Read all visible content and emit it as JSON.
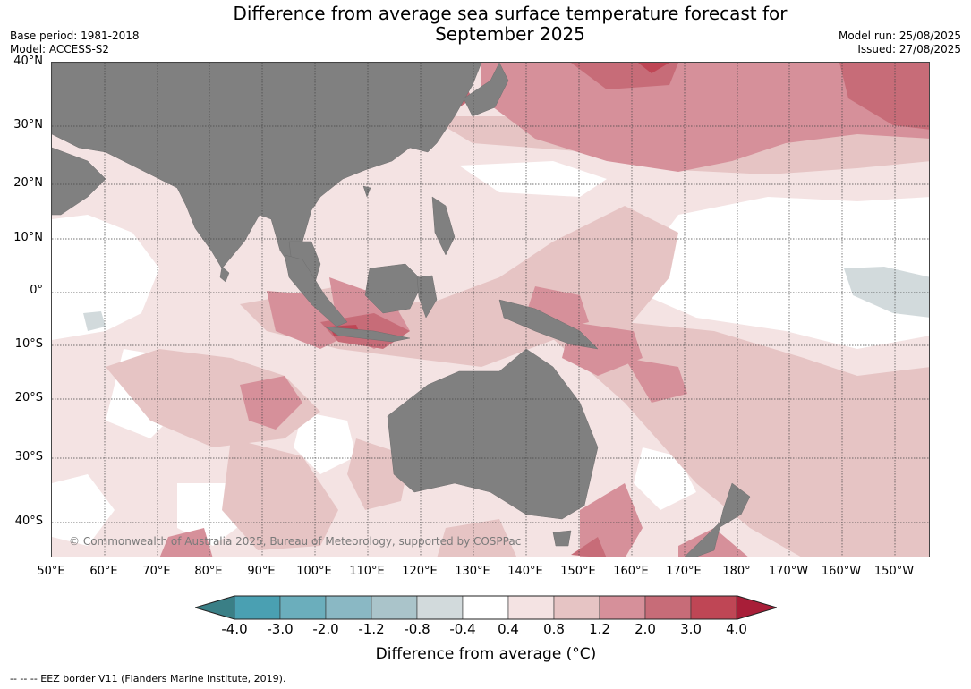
{
  "title": {
    "line1": "Difference from average sea surface temperature forecast for",
    "line2": "September 2025"
  },
  "meta_left": {
    "base_period": "Base period: 1981-2018",
    "model": "Model: ACCESS-S2"
  },
  "meta_right": {
    "model_run": "Model run: 25/08/2025",
    "issued": "Issued: 27/08/2025"
  },
  "map": {
    "region": "Indo-Pacific around Australia",
    "land_color": "#808080",
    "lat_labels": [
      "40°N",
      "30°N",
      "20°N",
      "10°N",
      "0°",
      "10°S",
      "20°S",
      "30°S",
      "40°S"
    ],
    "lon_labels": [
      "50°E",
      "60°E",
      "70°E",
      "80°E",
      "90°E",
      "100°E",
      "110°E",
      "120°E",
      "130°E",
      "140°E",
      "150°E",
      "160°E",
      "170°E",
      "180°",
      "170°W",
      "160°W",
      "150°W"
    ],
    "copyright": "© Commonwealth of Australia 2025, Bureau of Meteorology, supported by COSPPac"
  },
  "colorbar": {
    "ticks": [
      "-4.0",
      "-3.0",
      "-2.0",
      "-1.2",
      "-0.8",
      "-0.4",
      "0.4",
      "0.8",
      "1.2",
      "2.0",
      "3.0",
      "4.0"
    ],
    "colors": [
      "#3a7f86",
      "#4aa0b2",
      "#6baebc",
      "#8ab8c4",
      "#aac4ca",
      "#d2dadc",
      "#ffffff",
      "#f4e3e3",
      "#e6c4c4",
      "#d6909a",
      "#c76c78",
      "#bf4655",
      "#a81e38"
    ],
    "label": "Difference from average (°C)"
  },
  "footnote": "--  --  -- EEZ border V11 (Flanders Marine Institute, 2019)."
}
